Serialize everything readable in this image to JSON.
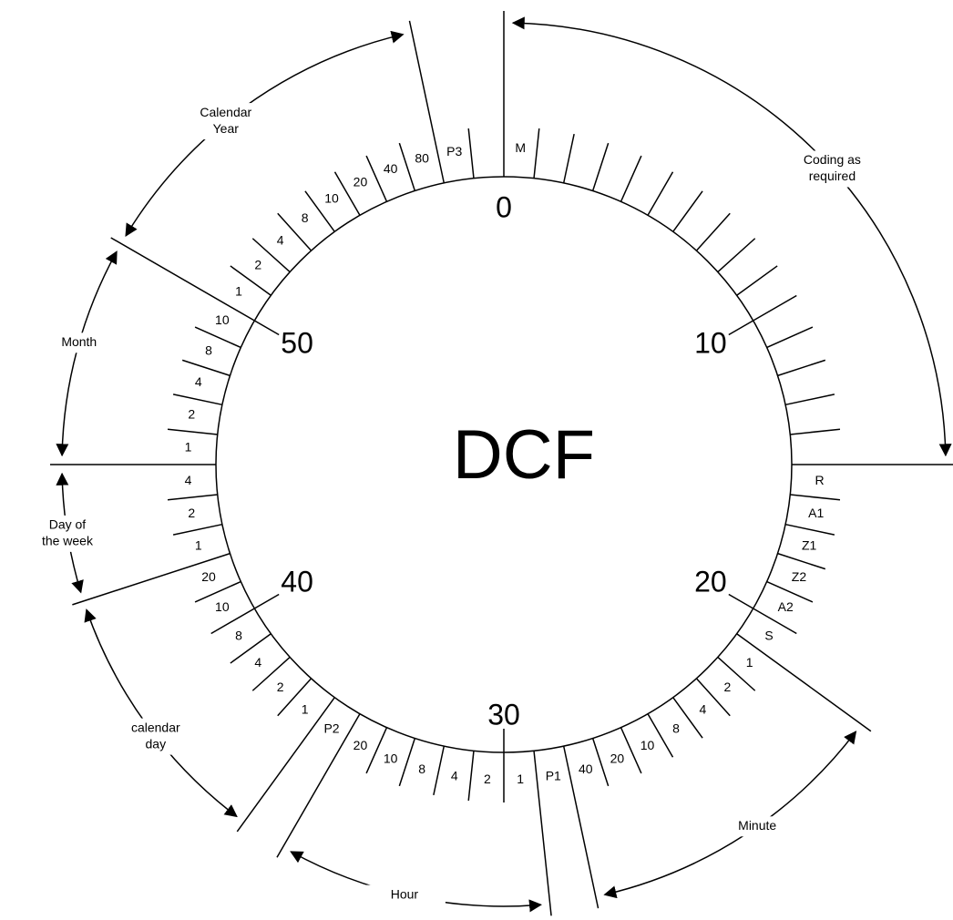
{
  "diagram": {
    "center_label": "DCF",
    "numbers": [
      "0",
      "10",
      "20",
      "30",
      "40",
      "50"
    ],
    "slots": [
      "M",
      null,
      null,
      null,
      null,
      null,
      null,
      null,
      null,
      null,
      null,
      null,
      null,
      null,
      null,
      "R",
      "A1",
      "Z1",
      "Z2",
      "A2",
      "S",
      "1",
      "2",
      "4",
      "8",
      "10",
      "20",
      "40",
      "P1",
      "1",
      "2",
      "4",
      "8",
      "10",
      "20",
      "P2",
      "1",
      "2",
      "4",
      "8",
      "10",
      "20",
      "1",
      "2",
      "4",
      "1",
      "2",
      "4",
      "8",
      "10",
      "1",
      "2",
      "4",
      "8",
      "10",
      "20",
      "40",
      "80",
      "P3",
      null
    ],
    "sections": [
      {
        "lines": [
          "Coding as",
          "required"
        ]
      },
      {
        "lines": [
          "Minute"
        ]
      },
      {
        "lines": [
          "Hour"
        ]
      },
      {
        "lines": [
          "calendar",
          "day"
        ]
      },
      {
        "lines": [
          "Day of",
          "the week"
        ]
      },
      {
        "lines": [
          "Month"
        ]
      },
      {
        "lines": [
          "Calendar",
          "Year"
        ]
      }
    ]
  }
}
